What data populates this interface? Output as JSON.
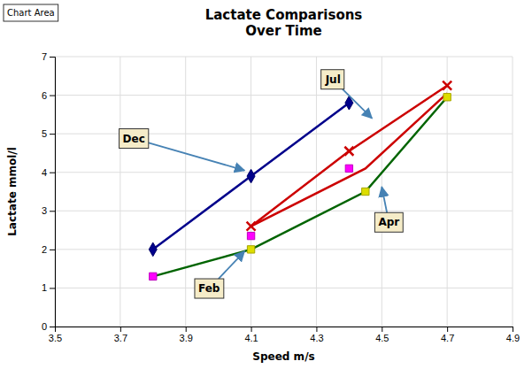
{
  "chart_data": {
    "type": "line",
    "title": "Lactate Comparisons\nOver Time",
    "xlabel": "Speed m/s",
    "ylabel": "Lactate mmol/l",
    "xlim": [
      3.5,
      4.9
    ],
    "ylim": [
      0,
      7
    ],
    "xticks": [
      3.5,
      3.7,
      3.9,
      4.1,
      4.3,
      4.5,
      4.7,
      4.9
    ],
    "yticks": [
      0,
      1,
      2,
      3,
      4,
      5,
      6,
      7
    ],
    "grid": true,
    "series": [
      {
        "color": "#00008B",
        "marker": "diamond",
        "line_style": "solid",
        "x": [
          3.8,
          4.1,
          4.4
        ],
        "values": [
          2.0,
          3.9,
          5.8
        ]
      },
      {
        "color": "#FF00FF",
        "marker": "square",
        "line_style": "none",
        "x": [
          3.8,
          4.1,
          4.4
        ],
        "values": [
          1.3,
          2.35,
          4.1
        ]
      },
      {
        "color": "#DDDD00",
        "marker": "square",
        "line_style": "none",
        "x": [
          4.1,
          4.45,
          4.7
        ],
        "values": [
          2.0,
          3.5,
          5.95
        ]
      },
      {
        "color": "#CC0000",
        "marker": "x",
        "line_style": "solid",
        "x": [
          4.1,
          4.4,
          4.7
        ],
        "values": [
          2.6,
          4.55,
          6.25
        ]
      },
      {
        "color": "#006400",
        "marker": "none",
        "line_style": "solid",
        "x": [
          3.8,
          4.1,
          4.45,
          4.7
        ],
        "values": [
          1.3,
          2.0,
          3.5,
          5.95
        ]
      },
      {
        "color": "#CC0000",
        "marker": "none",
        "line_style": "solid",
        "x": [
          4.1,
          4.45,
          4.7
        ],
        "values": [
          2.6,
          4.1,
          6.05
        ]
      }
    ],
    "annotations": [
      {
        "text": "Dec",
        "x": 4.08,
        "y": 4.05
      },
      {
        "text": "Feb",
        "x": 4.08,
        "y": 1.95
      },
      {
        "text": "Jul",
        "x": 4.47,
        "y": 5.4
      },
      {
        "text": "Apr",
        "x": 4.5,
        "y": 3.62
      },
      {
        "text": "Chart Area"
      }
    ]
  }
}
